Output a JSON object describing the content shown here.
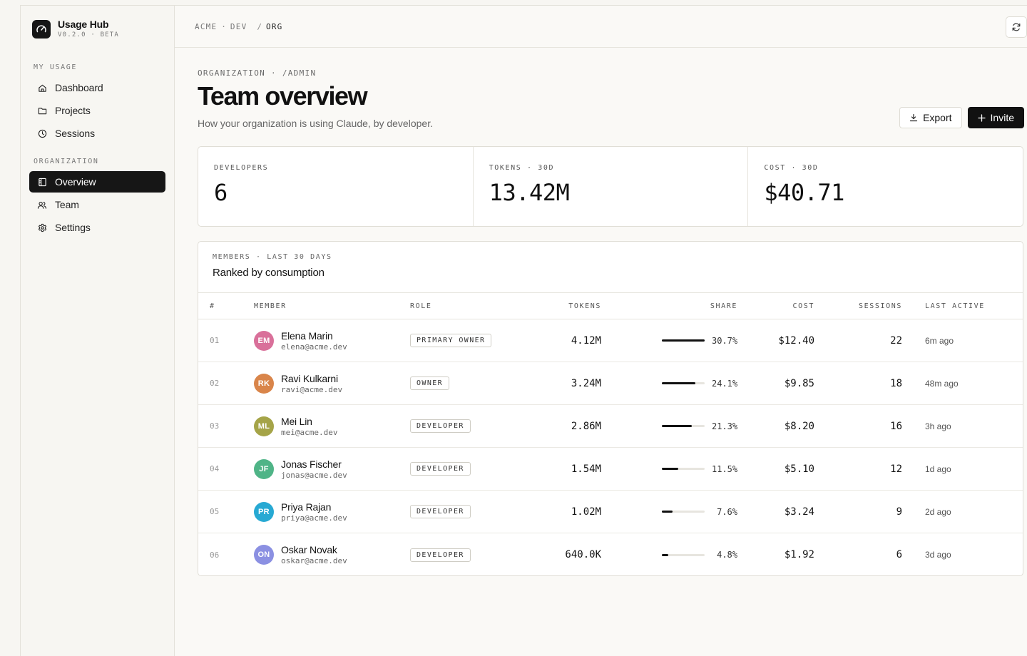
{
  "brand": {
    "name": "Usage Hub",
    "version": "V0.2.0 · BETA"
  },
  "sidebar": {
    "sections": [
      {
        "heading": "MY USAGE",
        "items": [
          {
            "label": "Dashboard",
            "icon": "home-icon"
          },
          {
            "label": "Projects",
            "icon": "folder-icon"
          },
          {
            "label": "Sessions",
            "icon": "clock-icon"
          }
        ]
      },
      {
        "heading": "ORGANIZATION",
        "items": [
          {
            "label": "Overview",
            "icon": "overview-icon",
            "active": true
          },
          {
            "label": "Team",
            "icon": "users-icon"
          },
          {
            "label": "Settings",
            "icon": "gear-icon"
          }
        ]
      }
    ]
  },
  "breadcrumb": {
    "org": "ACME",
    "sep1": "·",
    "domain": "DEV",
    "sep2": "/",
    "current": "ORG"
  },
  "page": {
    "eyebrow": "ORGANIZATION · /ADMIN",
    "title": "Team overview",
    "subtitle": "How your organization is using Claude, by developer."
  },
  "actions": {
    "export_label": "Export",
    "invite_label": "Invite"
  },
  "stats": [
    {
      "label": "DEVELOPERS",
      "value": "6"
    },
    {
      "label": "TOKENS · 30D",
      "value": "13.42M"
    },
    {
      "label": "COST · 30D",
      "value": "$40.71"
    }
  ],
  "members": {
    "eyebrow": "MEMBERS · LAST 30 DAYS",
    "title": "Ranked by consumption",
    "columns": {
      "idx": "#",
      "member": "MEMBER",
      "role": "ROLE",
      "tokens": "TOKENS",
      "share": "SHARE",
      "cost": "COST",
      "sessions": "SESSIONS",
      "last": "LAST ACTIVE"
    },
    "rows": [
      {
        "idx": "01",
        "initials": "EM",
        "color": "#d9709a",
        "name": "Elena Marin",
        "email": "elena@acme.dev",
        "role": "PRIMARY OWNER",
        "tokens": "4.12M",
        "share": "30.7%",
        "share_value": 1.0,
        "cost": "$12.40",
        "sessions": "22",
        "last": "6m ago"
      },
      {
        "idx": "02",
        "initials": "RK",
        "color": "#d9854a",
        "name": "Ravi Kulkarni",
        "email": "ravi@acme.dev",
        "role": "OWNER",
        "tokens": "3.24M",
        "share": "24.1%",
        "share_value": 0.785,
        "cost": "$9.85",
        "sessions": "18",
        "last": "48m ago"
      },
      {
        "idx": "03",
        "initials": "ML",
        "color": "#a5a448",
        "name": "Mei Lin",
        "email": "mei@acme.dev",
        "role": "DEVELOPER",
        "tokens": "2.86M",
        "share": "21.3%",
        "share_value": 0.694,
        "cost": "$8.20",
        "sessions": "16",
        "last": "3h ago"
      },
      {
        "idx": "04",
        "initials": "JF",
        "color": "#4fb487",
        "name": "Jonas Fischer",
        "email": "jonas@acme.dev",
        "role": "DEVELOPER",
        "tokens": "1.54M",
        "share": "11.5%",
        "share_value": 0.375,
        "cost": "$5.10",
        "sessions": "12",
        "last": "1d ago"
      },
      {
        "idx": "05",
        "initials": "PR",
        "color": "#27a9d3",
        "name": "Priya Rajan",
        "email": "priya@acme.dev",
        "role": "DEVELOPER",
        "tokens": "1.02M",
        "share": "7.6%",
        "share_value": 0.248,
        "cost": "$3.24",
        "sessions": "9",
        "last": "2d ago"
      },
      {
        "idx": "06",
        "initials": "ON",
        "color": "#8b90e2",
        "name": "Oskar Novak",
        "email": "oskar@acme.dev",
        "role": "DEVELOPER",
        "tokens": "640.0K",
        "share": "4.8%",
        "share_value": 0.156,
        "cost": "$1.92",
        "sessions": "6",
        "last": "3d ago"
      }
    ]
  }
}
